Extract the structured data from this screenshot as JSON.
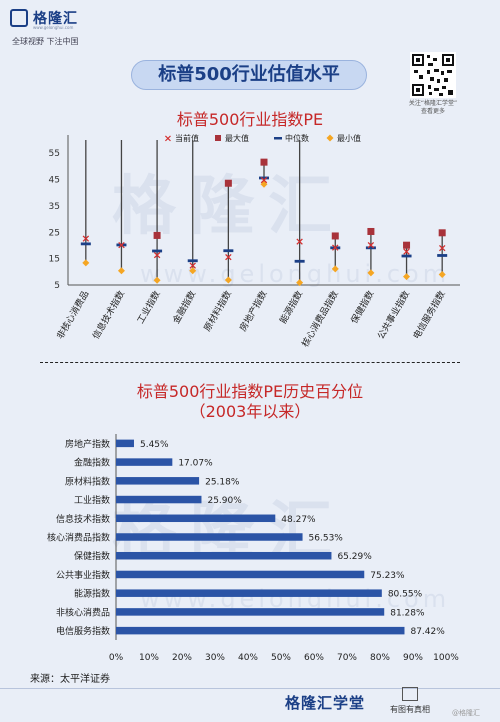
{
  "brand": {
    "logo_text": "格隆汇",
    "logo_url": "www.gelonghui.com",
    "slogan": "全球视野 下注中国",
    "watermark": "格隆汇",
    "watermark_url": "www.gelonghui.com"
  },
  "header": {
    "title": "标普500行业估值水平"
  },
  "qr": {
    "caption_line1": "关注“格隆汇学堂”",
    "caption_line2": "查看更多"
  },
  "footer": {
    "source": "来源：太平洋证券",
    "brand": "格隆汇学堂",
    "sub": "有图有真相",
    "watermark": "@格隆汇"
  },
  "colors": {
    "current": "#d32f2f",
    "max": "#a8323a",
    "median": "#1b3f86",
    "min": "#f5a623",
    "bar": "#2b54a6",
    "title_red": "#c62828"
  },
  "chart_data": [
    {
      "type": "scatter",
      "title": "标普500行业指数PE",
      "legend": [
        "当前值",
        "最大值",
        "中位数",
        "最小值"
      ],
      "legend_position": "top",
      "categories": [
        "非核心消费品",
        "信息技术指数",
        "工业指数",
        "金融指数",
        "原材料指数",
        "房地产指数",
        "能源指数",
        "核心消费品指数",
        "保健指数",
        "公共事业指数",
        "电信服务指数"
      ],
      "yticks": [
        5,
        15,
        25,
        35,
        45,
        55
      ],
      "ylim": [
        5,
        60
      ],
      "series": [
        {
          "name": "当前值",
          "values": [
            22.8,
            20.3,
            16.6,
            12.5,
            15.8,
            45.1,
            21.6,
            19.4,
            20.4,
            17.9,
            19.2
          ]
        },
        {
          "name": "最大值",
          "values": [
            null,
            null,
            23.8,
            null,
            43.6,
            51.6,
            null,
            23.6,
            25.3,
            20.1,
            24.8
          ]
        },
        {
          "name": "中位数",
          "values": [
            20.6,
            20.2,
            17.9,
            14.2,
            18.0,
            45.6,
            14.0,
            19.1,
            19.1,
            16.0,
            16.2
          ]
        },
        {
          "name": "最小值",
          "values": [
            13.4,
            10.4,
            6.8,
            10.4,
            6.9,
            43.2,
            5.9,
            11.1,
            9.6,
            8.2,
            9.0
          ]
        }
      ],
      "vline_tops": [
        60,
        60,
        60,
        60,
        43.6,
        51.6,
        60,
        23.6,
        25.3,
        20.1,
        24.8
      ],
      "grid": false
    },
    {
      "type": "bar",
      "orientation": "horizontal",
      "title": "标普500行业指数PE历史百分位",
      "subtitle": "（2003年以来）",
      "categories": [
        "房地产指数",
        "金融指数",
        "原材料指数",
        "工业指数",
        "信息技术指数",
        "核心消费品指数",
        "保健指数",
        "公共事业指数",
        "能源指数",
        "非核心消费品",
        "电信服务指数"
      ],
      "values": [
        5.45,
        17.07,
        25.18,
        25.9,
        48.27,
        56.53,
        65.29,
        75.23,
        80.55,
        81.28,
        87.42
      ],
      "labels": [
        "5.45%",
        "17.07%",
        "25.18%",
        "25.90%",
        "48.27%",
        "56.53%",
        "65.29%",
        "75.23%",
        "80.55%",
        "81.28%",
        "87.42%"
      ],
      "xticks": [
        "0%",
        "10%",
        "20%",
        "30%",
        "40%",
        "50%",
        "60%",
        "70%",
        "80%",
        "90%",
        "100%"
      ],
      "xlim": [
        0,
        100
      ],
      "grid": false
    }
  ]
}
